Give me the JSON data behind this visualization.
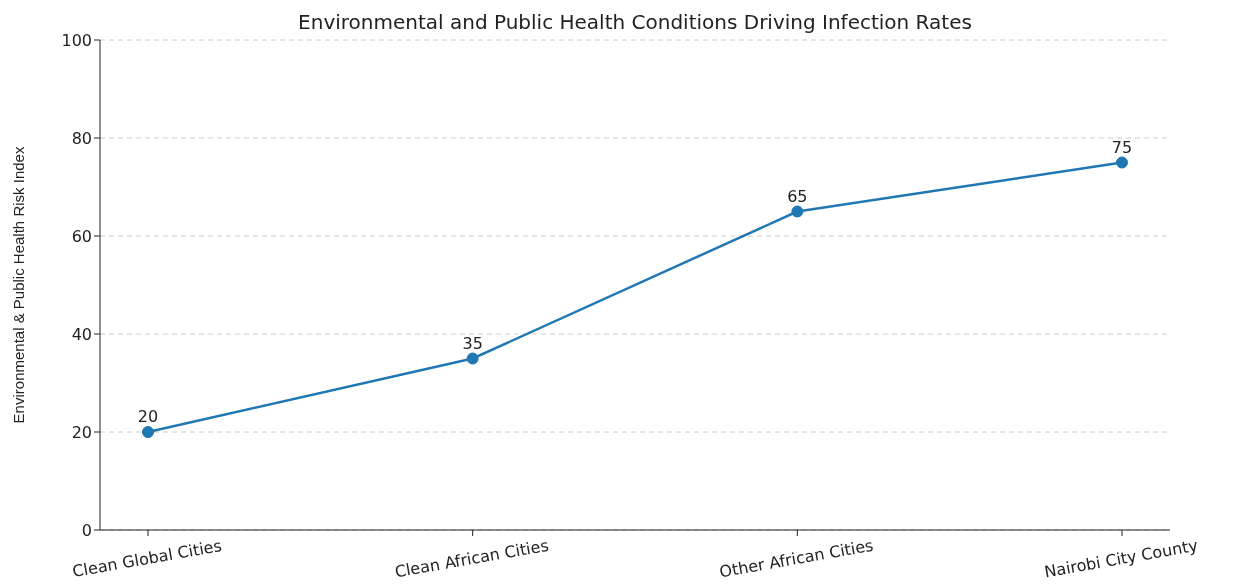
{
  "chart_data": {
    "type": "line",
    "title": "Environmental and Public Health Conditions Driving Infection Rates",
    "ylabel": "Environmental & Public Health Risk Index",
    "categories": [
      "Clean Global Cities",
      "Clean African Cities",
      "Other African Cities",
      "Nairobi City County"
    ],
    "series": [
      {
        "color": "#1f77b4",
        "values": [
          20,
          35,
          65,
          75
        ]
      }
    ],
    "ylim": [
      0,
      100
    ],
    "yticks": [
      0,
      20,
      40,
      60,
      80,
      100
    ],
    "grid": "y",
    "marker": "circle",
    "line_style": "solid",
    "data_labels": true,
    "legend": false
  }
}
